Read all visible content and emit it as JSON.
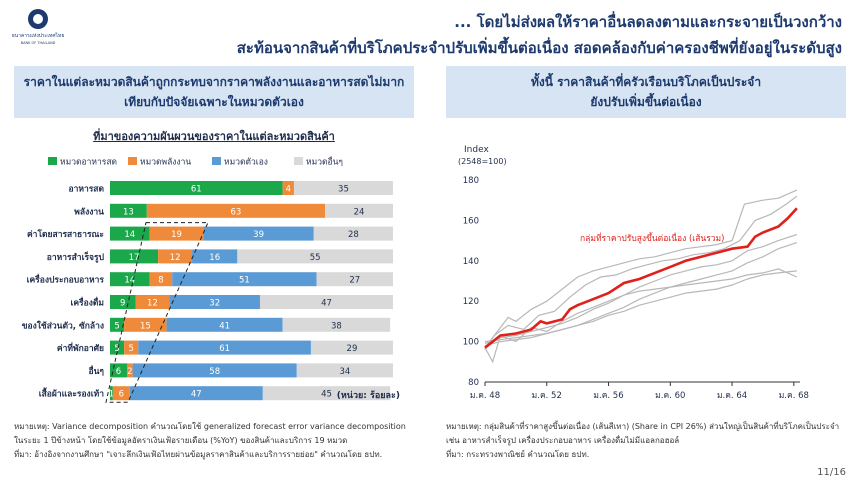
{
  "header": {
    "org_name": "ธนาคารแห่งประเทศไทย",
    "org_name_en": "BANK OF THAILAND",
    "title_line1": "... โดยไม่ส่งผลให้ราคาอื่นลดลงตามและกระจายเป็นวงกว้าง",
    "title_line2": "สะท้อนจากสินค้าที่บริโภคประจำปรับเพิ่มขึ้นต่อเนื่อง สอดคล้องกับค่าครองชีพที่ยังอยู่ในระดับสูง"
  },
  "left_panel": {
    "header_line1": "ราคาในแต่ละหมวดสินค้าถูกกระทบจากราคาพลังงานและอาหารสดไม่มาก",
    "header_line2": "เทียบกับปัจจัยเฉพาะในหมวดตัวเอง",
    "note_line1": "หมายเหตุ: Variance decomposition คำนวณโดยใช้ generalized forecast error variance decomposition",
    "note_line2": "ในระยะ 1 ปีข้างหน้า โดยใช้ข้อมูลอัตราเงินเฟ้อรายเดือน (%YoY) ของสินค้าและบริการ 19 หมวด",
    "note_line3": "ที่มา: อ้างอิงจากงานศึกษา \"เจาะลึกเงินเฟ้อไทยผ่านข้อมูลราคาสินค้าและบริการรายย่อย\" คำนวณโดย ธปท."
  },
  "right_panel": {
    "header_line1": "ทั้งนี้ ราคาสินค้าที่ครัวเรือนบริโภคเป็นประจำ",
    "header_line2": "ยังปรับเพิ่มขึ้นต่อเนื่อง",
    "note_line1": "หมายเหตุ: กลุ่มสินค้าที่ราคาสูงขึ้นต่อเนื่อง (เส้นสีเทา) (Share in CPI 26%) ส่วนใหญ่เป็นสินค้าที่บริโภคเป็นประจำ",
    "note_line2": "เช่น อาหารสำเร็จรูป เครื่องประกอบอาหาร เครื่องดื่มไม่มีแอลกอฮอล์",
    "note_line3": "ที่มา: กระทรวงพาณิชย์ คำนวณโดย ธปท."
  },
  "page_number": "11/16",
  "colors": {
    "green": "#1aa84b",
    "orange": "#ef8a3a",
    "blue": "#5b9bd5",
    "gray": "#d9d9d9",
    "red": "#e0201b",
    "navy": "#1d3a6e",
    "light_blue": "#d6e4f3",
    "grey_line": "#b8b8b8"
  },
  "chart_data": [
    {
      "type": "bar",
      "stacked": true,
      "orientation": "horizontal",
      "title": "ที่มาของความผันผวนของราคาในแต่ละหมวดสินค้า",
      "unit_label": "(หน่วย: ร้อยละ)",
      "categories": [
        "อาหารสด",
        "พลังงาน",
        "ค่าโดยสารสาธารณะ",
        "อาหารสำเร็จรูป",
        "เครื่องประกอบอาหาร",
        "เครื่องดื่ม",
        "ของใช้ส่วนตัว, ซักล้าง",
        "ค่าที่พักอาศัย",
        "อื่นๆ",
        "เสื้อผ้าและรองเท้า"
      ],
      "series": [
        {
          "name": "หมวดอาหารสด",
          "color": "#1aa84b",
          "values": [
            61,
            13,
            14,
            17,
            14,
            9,
            5,
            5,
            6,
            1
          ]
        },
        {
          "name": "หมวดพลังงาน",
          "color": "#ef8a3a",
          "values": [
            4,
            63,
            19,
            12,
            8,
            12,
            15,
            5,
            2,
            6
          ]
        },
        {
          "name": "หมวดตัวเอง",
          "color": "#5b9bd5",
          "values": [
            0,
            0,
            39,
            16,
            51,
            32,
            41,
            61,
            58,
            47
          ]
        },
        {
          "name": "หมวดอื่นๆ",
          "color": "#d9d9d9",
          "values": [
            35,
            24,
            28,
            55,
            27,
            47,
            38,
            29,
            34,
            45
          ]
        }
      ],
      "xlim": [
        0,
        100
      ],
      "legend_position": "top"
    },
    {
      "type": "line",
      "ylabel": "Index",
      "ylabel_sub": "(2548=100)",
      "ylim": [
        80,
        180
      ],
      "yticks": [
        "80",
        "100",
        "120",
        "140",
        "160",
        "180"
      ],
      "x_ticks": [
        "ม.ค. 48",
        "ม.ค. 52",
        "ม.ค. 56",
        "ม.ค. 60",
        "ม.ค. 64",
        "ม.ค. 68"
      ],
      "x_tick_years": [
        2548,
        2552,
        2556,
        2560,
        2564,
        2568
      ],
      "x_range": [
        2548,
        2568.4
      ],
      "annotation": "กลุ่มที่ราคาปรับสูงขึ้นต่อเนื่อง (เส้นรวม)",
      "highlight_series": {
        "name": "กลุ่มที่ราคาปรับสูงขึ้นต่อเนื่อง (เส้นรวม)",
        "color": "#e0201b",
        "points": [
          [
            2548,
            97
          ],
          [
            2548.5,
            100
          ],
          [
            2549,
            103
          ],
          [
            2550,
            104
          ],
          [
            2551,
            106
          ],
          [
            2551.6,
            110
          ],
          [
            2552,
            109
          ],
          [
            2553,
            111
          ],
          [
            2553.5,
            116
          ],
          [
            2554,
            118
          ],
          [
            2555,
            121
          ],
          [
            2556,
            124
          ],
          [
            2557,
            129
          ],
          [
            2558,
            131
          ],
          [
            2559,
            134
          ],
          [
            2560,
            137
          ],
          [
            2561,
            140
          ],
          [
            2562,
            142
          ],
          [
            2563,
            144
          ],
          [
            2564,
            146
          ],
          [
            2565,
            147
          ],
          [
            2565.5,
            152
          ],
          [
            2566,
            154
          ],
          [
            2567,
            157
          ],
          [
            2567.6,
            161
          ],
          [
            2568.2,
            166
          ]
        ]
      },
      "grey_series": [
        {
          "points": [
            [
              2548,
              97
            ],
            [
              2548.7,
              104
            ],
            [
              2549.5,
              112
            ],
            [
              2550,
              110
            ],
            [
              2551,
              116
            ],
            [
              2552,
              120
            ],
            [
              2553,
              126
            ],
            [
              2554,
              132
            ],
            [
              2555,
              135
            ],
            [
              2556,
              137
            ],
            [
              2557,
              139
            ],
            [
              2558,
              141
            ],
            [
              2559,
              142
            ],
            [
              2560,
              144
            ],
            [
              2561,
              146
            ],
            [
              2562,
              147
            ],
            [
              2563,
              148
            ],
            [
              2564,
              150
            ],
            [
              2564.8,
              168
            ],
            [
              2566,
              170
            ],
            [
              2567,
              171
            ],
            [
              2568.2,
              175
            ]
          ]
        },
        {
          "points": [
            [
              2548,
              96
            ],
            [
              2548.6,
              103
            ],
            [
              2549.5,
              108
            ],
            [
              2550.5,
              106
            ],
            [
              2551.5,
              113
            ],
            [
              2552.5,
              115
            ],
            [
              2553.5,
              122
            ],
            [
              2554.5,
              128
            ],
            [
              2555.5,
              132
            ],
            [
              2556.5,
              133
            ],
            [
              2557.5,
              136
            ],
            [
              2558.5,
              138
            ],
            [
              2559.5,
              140
            ],
            [
              2560.5,
              141
            ],
            [
              2561.5,
              143
            ],
            [
              2562.5,
              144
            ],
            [
              2563.5,
              146
            ],
            [
              2564.5,
              150
            ],
            [
              2565.5,
              160
            ],
            [
              2566.5,
              163
            ],
            [
              2567.5,
              168
            ],
            [
              2568.2,
              172
            ]
          ]
        },
        {
          "points": [
            [
              2548,
              99
            ],
            [
              2549,
              102
            ],
            [
              2550,
              103
            ],
            [
              2551,
              105
            ],
            [
              2552,
              107
            ],
            [
              2553,
              109
            ],
            [
              2554,
              112
            ],
            [
              2555,
              116
            ],
            [
              2556,
              119
            ],
            [
              2557,
              123
            ],
            [
              2558,
              127
            ],
            [
              2559,
              130
            ],
            [
              2560,
              133
            ],
            [
              2561,
              135
            ],
            [
              2562,
              137
            ],
            [
              2563,
              138
            ],
            [
              2564,
              140
            ],
            [
              2565,
              145
            ],
            [
              2566,
              147
            ],
            [
              2567,
              150
            ],
            [
              2568.2,
              153
            ]
          ]
        },
        {
          "points": [
            [
              2548,
              100
            ],
            [
              2549,
              101
            ],
            [
              2550,
              102
            ],
            [
              2551,
              103
            ],
            [
              2552,
              104
            ],
            [
              2553,
              106
            ],
            [
              2554,
              108
            ],
            [
              2555,
              111
            ],
            [
              2556,
              114
            ],
            [
              2557,
              117
            ],
            [
              2558,
              121
            ],
            [
              2559,
              124
            ],
            [
              2560,
              127
            ],
            [
              2561,
              129
            ],
            [
              2562,
              131
            ],
            [
              2563,
              133
            ],
            [
              2564,
              135
            ],
            [
              2565,
              139
            ],
            [
              2566,
              142
            ],
            [
              2567,
              146
            ],
            [
              2568.2,
              149
            ]
          ]
        },
        {
          "points": [
            [
              2548,
              98
            ],
            [
              2549,
              100
            ],
            [
              2550,
              101
            ],
            [
              2551,
              102
            ],
            [
              2552,
              104
            ],
            [
              2553,
              106
            ],
            [
              2554,
              108
            ],
            [
              2555,
              110
            ],
            [
              2556,
              113
            ],
            [
              2557,
              115
            ],
            [
              2558,
              118
            ],
            [
              2559,
              120
            ],
            [
              2560,
              122
            ],
            [
              2561,
              124
            ],
            [
              2562,
              125
            ],
            [
              2563,
              126
            ],
            [
              2564,
              128
            ],
            [
              2565,
              131
            ],
            [
              2566,
              133
            ],
            [
              2567,
              134
            ],
            [
              2568.2,
              135
            ]
          ]
        },
        {
          "points": [
            [
              2548,
              97
            ],
            [
              2548.5,
              90
            ],
            [
              2549,
              103
            ],
            [
              2550,
              100
            ],
            [
              2551,
              107
            ],
            [
              2552,
              105
            ],
            [
              2553,
              110
            ],
            [
              2554,
              114
            ],
            [
              2555,
              117
            ],
            [
              2556,
              120
            ],
            [
              2557,
              123
            ],
            [
              2558,
              125
            ],
            [
              2559,
              126
            ],
            [
              2560,
              127
            ],
            [
              2561,
              128
            ],
            [
              2562,
              129
            ],
            [
              2563,
              130
            ],
            [
              2564,
              131
            ],
            [
              2565,
              133
            ],
            [
              2566,
              134
            ],
            [
              2567,
              136
            ],
            [
              2568.2,
              132
            ]
          ]
        }
      ]
    }
  ]
}
